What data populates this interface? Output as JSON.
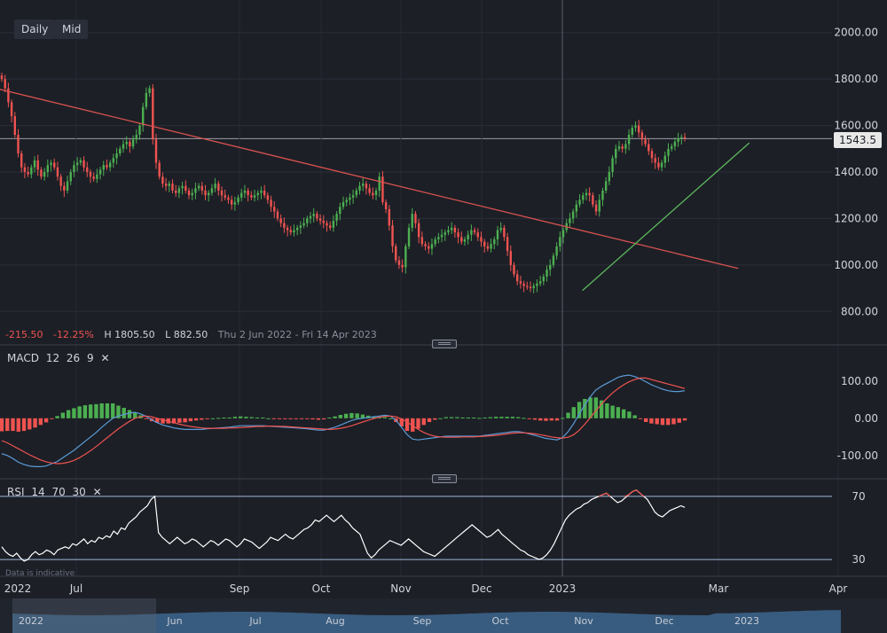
{
  "toolbar": {
    "interval_label": "Daily",
    "price_type_label": "Mid"
  },
  "price_stats": {
    "change": "-215.50",
    "change_pct": "-12.25%",
    "high": "H 1805.50",
    "low": "L 882.50",
    "date_range": "Thu 2 Jun 2022 - Fri 14 Apr 2023"
  },
  "macd_label": {
    "name": "MACD",
    "p1": "12",
    "p2": "26",
    "p3": "9"
  },
  "rsi_label": {
    "name": "RSI",
    "p1": "14",
    "p2": "70",
    "p3": "30"
  },
  "disclaimer": "Data is indicative",
  "current_price": "1543.5",
  "colors": {
    "background": "#1c1f26",
    "up": "#4caf50",
    "down": "#ef5350",
    "macd_line": "#5b9bd5",
    "signal_line": "#ef5350",
    "trendline_down": "#d9534f",
    "trendline_up": "#5cb85c",
    "rsi_line": "#ffffff",
    "rsi_overbought": "#ef5350",
    "navigator_fill": "#3f6a93"
  },
  "chart_data": [
    {
      "type": "candlestick",
      "title": "",
      "x_ticks": [
        "2022",
        "Jul",
        "Sep",
        "Oct",
        "Nov",
        "Dec",
        "2023",
        "Mar",
        "Apr"
      ],
      "y_ticks": [
        800,
        1000,
        1200,
        1400,
        1600,
        1800,
        2000
      ],
      "y_tick_labels": [
        "800.00",
        "1000.00",
        "1200.00",
        "1400.00",
        "1600.00",
        "1800.00",
        "2000.00"
      ],
      "ylim": [
        660,
        2140
      ],
      "current_price_line": 1543.5,
      "close": [
        1800,
        1760,
        1700,
        1640,
        1560,
        1480,
        1420,
        1400,
        1390,
        1420,
        1450,
        1410,
        1380,
        1400,
        1430,
        1440,
        1420,
        1380,
        1340,
        1320,
        1360,
        1400,
        1430,
        1440,
        1450,
        1420,
        1400,
        1380,
        1370,
        1390,
        1410,
        1430,
        1420,
        1440,
        1460,
        1480,
        1500,
        1520,
        1530,
        1510,
        1540,
        1560,
        1600,
        1680,
        1740,
        1760,
        1540,
        1440,
        1380,
        1350,
        1340,
        1350,
        1320,
        1310,
        1330,
        1340,
        1320,
        1300,
        1310,
        1330,
        1340,
        1320,
        1300,
        1310,
        1330,
        1350,
        1320,
        1300,
        1290,
        1280,
        1260,
        1270,
        1290,
        1310,
        1320,
        1300,
        1290,
        1300,
        1310,
        1320,
        1300,
        1280,
        1250,
        1230,
        1200,
        1180,
        1160,
        1150,
        1140,
        1150,
        1160,
        1170,
        1180,
        1200,
        1210,
        1220,
        1200,
        1190,
        1180,
        1170,
        1160,
        1190,
        1220,
        1250,
        1270,
        1280,
        1290,
        1300,
        1320,
        1340,
        1350,
        1330,
        1310,
        1300,
        1320,
        1380,
        1270,
        1240,
        1170,
        1080,
        1020,
        1000,
        990,
        1080,
        1160,
        1220,
        1180,
        1120,
        1090,
        1080,
        1070,
        1090,
        1110,
        1120,
        1130,
        1140,
        1150,
        1160,
        1140,
        1120,
        1100,
        1110,
        1130,
        1150,
        1140,
        1120,
        1100,
        1080,
        1070,
        1090,
        1110,
        1150,
        1160,
        1120,
        1060,
        1000,
        960,
        930,
        920,
        910,
        905,
        900,
        910,
        920,
        930,
        950,
        980,
        1000,
        1040,
        1080,
        1120,
        1150,
        1180,
        1200,
        1230,
        1260,
        1280,
        1300,
        1310,
        1300,
        1260,
        1230,
        1280,
        1320,
        1360,
        1400,
        1460,
        1500,
        1510,
        1500,
        1520,
        1560,
        1590,
        1600,
        1570,
        1540,
        1520,
        1490,
        1460,
        1440,
        1420,
        1440,
        1470,
        1500,
        1510,
        1530,
        1545,
        1550,
        1543.5
      ],
      "trendlines": [
        {
          "from": [
            "2022-06-02",
            1760
          ],
          "to": [
            "2023-02-24",
            985
          ]
        },
        {
          "from": [
            "2022-12-30",
            890
          ],
          "to": [
            "2023-02-28",
            1525
          ]
        }
      ]
    },
    {
      "type": "macd",
      "y_ticks": [
        -100,
        0,
        100
      ],
      "y_tick_labels": [
        "-100.00",
        "0.00",
        "100.00"
      ],
      "ylim": [
        -160,
        190
      ],
      "macd": [
        -95,
        -100,
        -108,
        -118,
        -124,
        -128,
        -130,
        -130,
        -128,
        -122,
        -116,
        -106,
        -96,
        -86,
        -74,
        -62,
        -50,
        -38,
        -24,
        -12,
        0,
        6,
        10,
        14,
        16,
        12,
        5,
        -4,
        -12,
        -18,
        -22,
        -26,
        -28,
        -30,
        -30,
        -30,
        -30,
        -28,
        -27,
        -26,
        -25,
        -24,
        -22,
        -20,
        -20,
        -20,
        -20,
        -20,
        -21,
        -22,
        -23,
        -24,
        -25,
        -26,
        -27,
        -28,
        -30,
        -32,
        -32,
        -28,
        -24,
        -18,
        -12,
        -6,
        -2,
        0,
        2,
        4,
        6,
        8,
        6,
        -6,
        -24,
        -44,
        -56,
        -58,
        -56,
        -54,
        -52,
        -50,
        -48,
        -48,
        -48,
        -48,
        -48,
        -48,
        -48,
        -46,
        -44,
        -42,
        -40,
        -38,
        -36,
        -36,
        -38,
        -42,
        -46,
        -50,
        -54,
        -56,
        -58,
        -52,
        -36,
        -14,
        12,
        36,
        58,
        76,
        86,
        94,
        102,
        110,
        114,
        116,
        112,
        106,
        98,
        90,
        84,
        78,
        74,
        72,
        72,
        74
      ],
      "signal": [
        -60,
        -66,
        -74,
        -82,
        -90,
        -98,
        -105,
        -112,
        -117,
        -120,
        -122,
        -121,
        -118,
        -113,
        -106,
        -97,
        -87,
        -76,
        -64,
        -52,
        -40,
        -28,
        -18,
        -8,
        0,
        4,
        6,
        4,
        0,
        -4,
        -8,
        -12,
        -16,
        -19,
        -22,
        -24,
        -26,
        -27,
        -27,
        -27,
        -27,
        -26,
        -26,
        -25,
        -24,
        -23,
        -22,
        -22,
        -21,
        -21,
        -22,
        -22,
        -23,
        -24,
        -25,
        -26,
        -27,
        -28,
        -29,
        -30,
        -29,
        -27,
        -24,
        -20,
        -15,
        -10,
        -5,
        -1,
        3,
        5,
        6,
        4,
        -2,
        -10,
        -20,
        -30,
        -38,
        -44,
        -48,
        -50,
        -51,
        -51,
        -51,
        -50,
        -50,
        -50,
        -49,
        -48,
        -47,
        -46,
        -44,
        -42,
        -40,
        -39,
        -39,
        -40,
        -42,
        -44,
        -47,
        -50,
        -52,
        -53,
        -51,
        -44,
        -32,
        -16,
        2,
        20,
        38,
        54,
        68,
        80,
        90,
        98,
        104,
        108,
        108,
        104,
        100,
        96,
        92,
        88,
        84,
        80
      ],
      "histogram_rule": "macd - signal (green when positive, red when negative)"
    },
    {
      "type": "rsi",
      "y_ticks": [
        30,
        70
      ],
      "y_tick_labels": [
        "30",
        "70"
      ],
      "ylim": [
        25,
        80
      ],
      "overbought": 70,
      "oversold": 30,
      "values": [
        38,
        35,
        33,
        32,
        34,
        31,
        29,
        30,
        33,
        35,
        33,
        34,
        36,
        35,
        33,
        36,
        37,
        38,
        37,
        40,
        39,
        41,
        43,
        40,
        42,
        41,
        44,
        43,
        45,
        44,
        48,
        46,
        50,
        49,
        53,
        55,
        57,
        60,
        62,
        64,
        68,
        70,
        47,
        44,
        42,
        40,
        42,
        44,
        42,
        40,
        41,
        43,
        42,
        40,
        38,
        40,
        42,
        41,
        39,
        41,
        43,
        42,
        40,
        38,
        40,
        43,
        42,
        41,
        39,
        37,
        39,
        41,
        44,
        43,
        42,
        44,
        46,
        44,
        43,
        45,
        47,
        49,
        50,
        52,
        55,
        54,
        56,
        58,
        56,
        54,
        56,
        58,
        55,
        53,
        50,
        48,
        46,
        40,
        34,
        31,
        33,
        36,
        38,
        40,
        42,
        41,
        40,
        39,
        41,
        43,
        41,
        39,
        37,
        35,
        34,
        33,
        32,
        34,
        36,
        38,
        40,
        42,
        44,
        46,
        48,
        50,
        52,
        50,
        48,
        46,
        44,
        45,
        47,
        49,
        46,
        44,
        42,
        40,
        38,
        36,
        35,
        33,
        32,
        31,
        30,
        31,
        33,
        36,
        40,
        45,
        50,
        55,
        58,
        60,
        62,
        63,
        65,
        66,
        68,
        69,
        70,
        71,
        72,
        70,
        68,
        66,
        67,
        69,
        71,
        73,
        74,
        72,
        70,
        68,
        64,
        60,
        58,
        57,
        59,
        61,
        62,
        63,
        64,
        63
      ]
    }
  ],
  "navigator": {
    "labels": [
      "2022",
      "Jun",
      "Jul",
      "Aug",
      "Sep",
      "Oct",
      "Nov",
      "Dec",
      "2023"
    ]
  }
}
